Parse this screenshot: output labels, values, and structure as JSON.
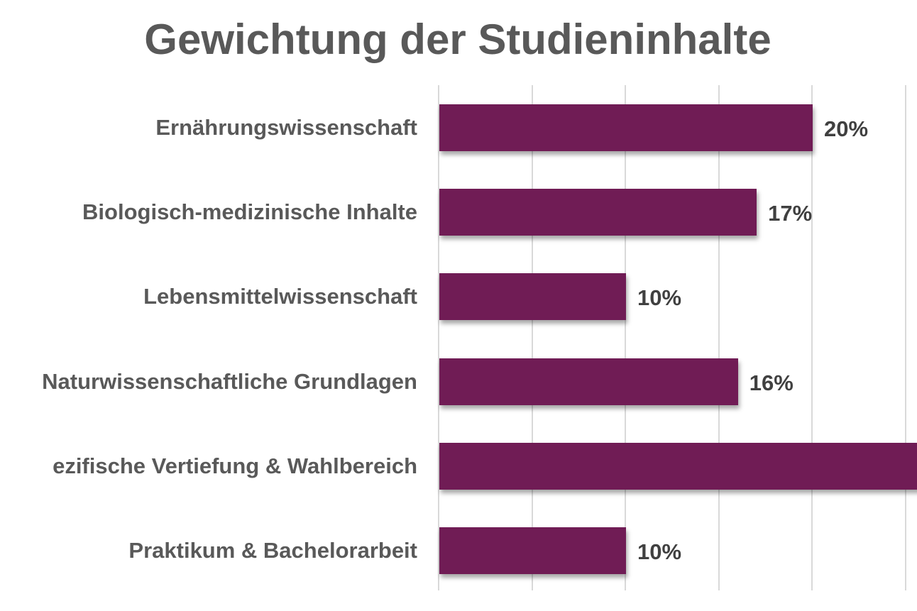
{
  "chart_data": {
    "type": "bar",
    "orientation": "horizontal",
    "title": "Gewichtung der Studieninhalte",
    "categories": [
      "Ernährungswissenschaft",
      "Biologisch-medizinische Inhalte",
      "Lebensmittelwissenschaft",
      "Naturwissenschaftliche Grundlagen",
      "Spezifische Vertiefung & Wahlbereich",
      "Praktikum & Bachelorarbeit"
    ],
    "visible_category_labels": [
      "Ernährungswissenschaft",
      "Biologisch-medizinische Inhalte",
      "Lebensmittelwissenschaft",
      "Naturwissenschaftliche Grundlagen",
      "ezifische Vertiefung & Wahlbereich",
      "Praktikum & Bachelorarbeit"
    ],
    "values": [
      20,
      17,
      10,
      16,
      27,
      10
    ],
    "value_labels": [
      "20%",
      "17%",
      "10%",
      "16%",
      "",
      "10%"
    ],
    "unit": "%",
    "xlabel": "",
    "ylabel": "",
    "xlim": [
      0,
      25
    ],
    "grid_step": 5,
    "grid": true,
    "legend": null,
    "bar_color": "#701C55",
    "notes": "Fifth bar (Spezifische Vertiefung & Wahlbereich) extends beyond the visible right edge; its value label is cut off. Value estimated >25%."
  },
  "colors": {
    "title": "#595959",
    "category_label": "#595959",
    "value_label": "#404040",
    "bar": "#701C55",
    "gridline": "#D9D9D9",
    "background": "#FFFFFF"
  }
}
